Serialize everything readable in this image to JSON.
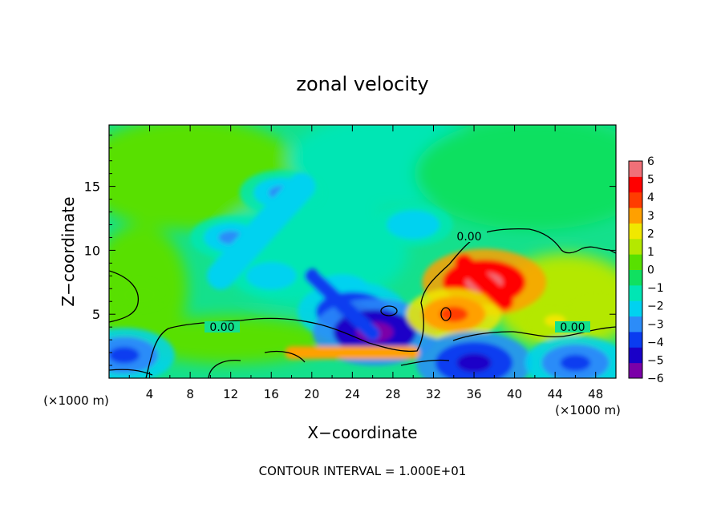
{
  "chart_data": {
    "type": "heatmap",
    "title": "zonal velocity",
    "xlabel": "X−coordinate",
    "ylabel": "Z−coordinate",
    "x_unit_left": "(×1000 m)",
    "x_unit_right": "(×1000 m)",
    "footer": "CONTOUR INTERVAL = 1.000E+01",
    "xlim": [
      0,
      50
    ],
    "ylim": [
      0,
      19.8
    ],
    "x_ticks": [
      4,
      8,
      12,
      16,
      20,
      24,
      28,
      32,
      36,
      40,
      44,
      48
    ],
    "x_tick_labels": [
      "4",
      "8",
      "12",
      "16",
      "20",
      "24",
      "28",
      "32",
      "36",
      "40",
      "44",
      "48"
    ],
    "y_ticks": [
      5,
      10,
      15
    ],
    "y_tick_labels": [
      "5",
      "10",
      "15"
    ],
    "contour_label": "0.00",
    "colorbar": {
      "min": -6,
      "max": 6,
      "ticks": [
        6,
        5,
        4,
        3,
        2,
        1,
        0,
        -1,
        -2,
        -3,
        -4,
        -5,
        -6
      ],
      "tick_labels": [
        "6",
        "5",
        "4",
        "3",
        "2",
        "1",
        "0",
        "−1",
        "−2",
        "−3",
        "−4",
        "−5",
        "−6"
      ],
      "colors": [
        "#7b00a8",
        "#1a00c8",
        "#0a3cf0",
        "#2c8cf8",
        "#00d2f0",
        "#00e6b4",
        "#10e060",
        "#58e000",
        "#b4e800",
        "#f0e800",
        "#ffa000",
        "#ff3c00",
        "#ff0000",
        "#f07078"
      ]
    },
    "features": [
      {
        "x": 12,
        "z": 11,
        "u": -2.6
      },
      {
        "x": 17,
        "z": 14.5,
        "u": -2.8
      },
      {
        "x": 16,
        "z": 8,
        "u": -2.2
      },
      {
        "x": 23,
        "z": 7,
        "u": -2.4
      },
      {
        "x": 24,
        "z": 5.2,
        "u": -4.6
      },
      {
        "x": 26.2,
        "z": 3.6,
        "u": -5.6
      },
      {
        "x": 30,
        "z": 12,
        "u": -2.5
      },
      {
        "x": 37,
        "z": 7.5,
        "u": 5.6
      },
      {
        "x": 34,
        "z": 5,
        "u": 3.6
      },
      {
        "x": 44,
        "z": 4.5,
        "u": 1.8
      },
      {
        "x": 48,
        "z": 5.5,
        "u": 1.6
      },
      {
        "x": 3,
        "z": 6.5,
        "u": 0.8
      },
      {
        "x": 1.5,
        "z": 1.8,
        "u": -4
      },
      {
        "x": 36,
        "z": 1.2,
        "u": -5
      },
      {
        "x": 46,
        "z": 1.2,
        "u": -4
      }
    ]
  }
}
